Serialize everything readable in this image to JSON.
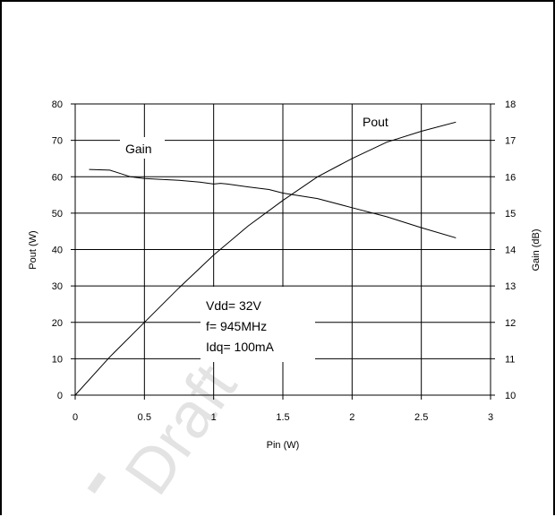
{
  "chart_data": {
    "type": "line",
    "xlabel": "Pin (W)",
    "ylabel": "Pout (W)",
    "y2label": "Gain (dB)",
    "xlim": [
      0,
      3
    ],
    "ylim": [
      0,
      80
    ],
    "y2lim": [
      10,
      18
    ],
    "x_ticks": [
      0,
      0.5,
      1,
      1.5,
      2,
      2.5,
      3
    ],
    "x_tick_labels": [
      "0",
      "0.5",
      "1",
      "1.5",
      "2",
      "2.5",
      "3"
    ],
    "y_ticks": [
      0,
      10,
      20,
      30,
      40,
      50,
      60,
      70,
      80
    ],
    "y_tick_labels": [
      "0",
      "10",
      "20",
      "30",
      "40",
      "50",
      "60",
      "70",
      "80"
    ],
    "y2_ticks": [
      10,
      11,
      12,
      13,
      14,
      15,
      16,
      17,
      18
    ],
    "y2_tick_labels": [
      "10",
      "11",
      "12",
      "13",
      "14",
      "15",
      "16",
      "17",
      "18"
    ],
    "grid": true,
    "series": [
      {
        "name": "Pout",
        "axis": "left",
        "x": [
          0,
          0.25,
          0.5,
          0.75,
          1,
          1.25,
          1.5,
          1.75,
          2,
          2.25,
          2.5,
          2.75
        ],
        "y": [
          0,
          10.5,
          20,
          29.5,
          38.5,
          46.5,
          53.5,
          60,
          65,
          69.5,
          72.5,
          75
        ]
      },
      {
        "name": "Gain",
        "axis": "right",
        "x": [
          0.1,
          0.25,
          0.4,
          0.5,
          0.75,
          0.9,
          1,
          1.05,
          1.1,
          1.25,
          1.4,
          1.5,
          1.75,
          2,
          2.25,
          2.5,
          2.75
        ],
        "y": [
          16.2,
          16.18,
          16.0,
          15.95,
          15.9,
          15.85,
          15.8,
          15.82,
          15.8,
          15.72,
          15.65,
          15.55,
          15.4,
          15.15,
          14.9,
          14.6,
          14.32
        ]
      }
    ],
    "annotations": [
      "Vdd= 32V",
      "f= 945MHz",
      "Idq= 100mA"
    ],
    "watermark": "Draft"
  }
}
